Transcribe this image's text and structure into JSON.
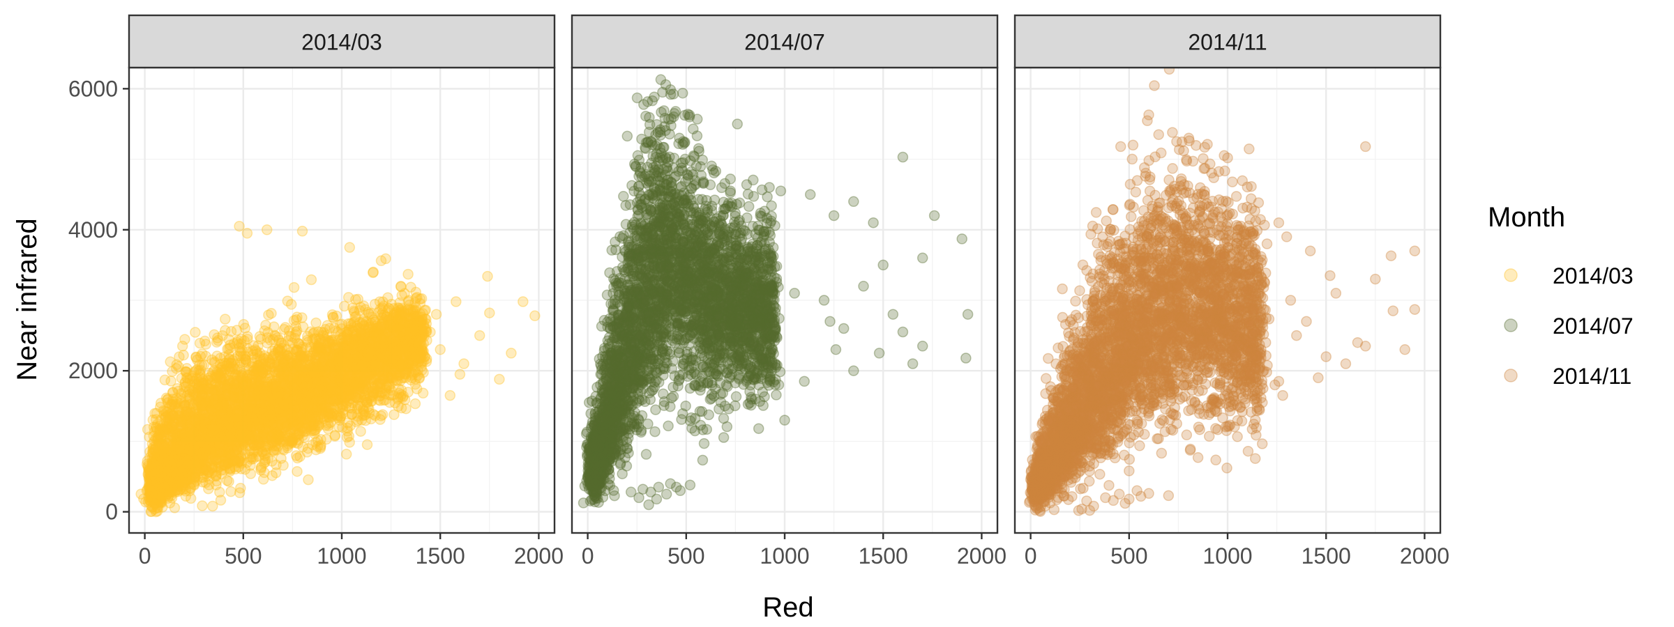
{
  "chart_data": {
    "type": "scatter",
    "xlabel": "Red",
    "ylabel": "Near infrared",
    "xlim": [
      -80,
      2080
    ],
    "ylim": [
      -300,
      6300
    ],
    "x_ticks": [
      0,
      500,
      1000,
      1500,
      2000
    ],
    "y_ticks": [
      0,
      2000,
      4000,
      6000
    ],
    "x_tick_labels": [
      "0",
      "500",
      "1000",
      "1500",
      "2000"
    ],
    "y_tick_labels": [
      "0",
      "2000",
      "4000",
      "6000"
    ],
    "grid": true,
    "legend": {
      "title": "Month",
      "placement": "right",
      "entries": [
        {
          "label": "2014/03",
          "color": "#FFC125"
        },
        {
          "label": "2014/07",
          "color": "#556B2F"
        },
        {
          "label": "2014/11",
          "color": "#CD853F"
        }
      ]
    },
    "point_opacity": 0.3,
    "panels": [
      {
        "strip_label": "2014/03",
        "color": "#FFC125",
        "cloud": {
          "base_nir_at_red": [
            [
              30,
              350
            ],
            [
              300,
              1050
            ],
            [
              700,
              1600
            ],
            [
              1100,
              2100
            ],
            [
              1400,
              2500
            ]
          ],
          "spread_up": [
            [
              30,
              600
            ],
            [
              150,
              1100
            ],
            [
              400,
              1000
            ],
            [
              700,
              800
            ],
            [
              1100,
              600
            ],
            [
              1400,
              500
            ]
          ],
          "spread_down": [
            [
              30,
              250
            ],
            [
              300,
              500
            ],
            [
              700,
              700
            ],
            [
              1100,
              700
            ],
            [
              1400,
              600
            ]
          ],
          "red_range": [
            30,
            1420
          ],
          "count": 5200
        },
        "highlights": [
          [
            480,
            4050
          ],
          [
            520,
            3950
          ],
          [
            620,
            4000
          ],
          [
            800,
            3980
          ],
          [
            1040,
            3750
          ],
          [
            1200,
            3560
          ],
          [
            1740,
            3340
          ],
          [
            1920,
            2980
          ],
          [
            1980,
            2780
          ],
          [
            1750,
            2820
          ],
          [
            1580,
            2980
          ],
          [
            1860,
            2250
          ],
          [
            1800,
            1880
          ],
          [
            1550,
            1650
          ],
          [
            1600,
            1950
          ],
          [
            1250,
            1650
          ],
          [
            1420,
            2200
          ],
          [
            1480,
            2800
          ],
          [
            1500,
            2300
          ],
          [
            1300,
            3200
          ],
          [
            1160,
            3400
          ],
          [
            1700,
            2500
          ],
          [
            1620,
            2100
          ]
        ]
      },
      {
        "strip_label": "2014/07",
        "color": "#556B2F",
        "cloud": {
          "base_nir_at_red": [
            [
              20,
              500
            ],
            [
              150,
              1800
            ],
            [
              300,
              3100
            ],
            [
              420,
              3600
            ],
            [
              600,
              3100
            ],
            [
              900,
              2800
            ]
          ],
          "spread_up": [
            [
              20,
              500
            ],
            [
              150,
              1400
            ],
            [
              300,
              2200
            ],
            [
              420,
              1700
            ],
            [
              600,
              1300
            ],
            [
              900,
              1200
            ]
          ],
          "spread_down": [
            [
              20,
              300
            ],
            [
              150,
              1000
            ],
            [
              300,
              1400
            ],
            [
              420,
              1500
            ],
            [
              600,
              1300
            ],
            [
              900,
              1000
            ]
          ],
          "red_range": [
            20,
            950
          ],
          "count": 4200
        },
        "highlights": [
          [
            380,
            5950
          ],
          [
            440,
            5650
          ],
          [
            760,
            5500
          ],
          [
            980,
            4550
          ],
          [
            1130,
            4500
          ],
          [
            1350,
            4400
          ],
          [
            1600,
            5030
          ],
          [
            1760,
            4200
          ],
          [
            1900,
            3870
          ],
          [
            1500,
            3500
          ],
          [
            1700,
            3600
          ],
          [
            1930,
            2800
          ],
          [
            1920,
            2180
          ],
          [
            1700,
            2350
          ],
          [
            1600,
            2550
          ],
          [
            1480,
            2250
          ],
          [
            1300,
            2600
          ],
          [
            1200,
            3000
          ],
          [
            1350,
            2000
          ],
          [
            1100,
            1850
          ],
          [
            1260,
            2300
          ],
          [
            1400,
            3200
          ],
          [
            1050,
            3100
          ],
          [
            1000,
            1300
          ],
          [
            1230,
            2700
          ],
          [
            1550,
            2800
          ],
          [
            1450,
            4100
          ],
          [
            1250,
            4200
          ],
          [
            1650,
            2100
          ],
          [
            320,
            280
          ],
          [
            360,
            350
          ],
          [
            420,
            400
          ],
          [
            450,
            350
          ],
          [
            520,
            380
          ],
          [
            470,
            300
          ],
          [
            260,
            200
          ],
          [
            310,
            100
          ],
          [
            400,
            250
          ],
          [
            350,
            180
          ],
          [
            220,
            280
          ],
          [
            280,
            320
          ]
        ]
      },
      {
        "strip_label": "2014/11",
        "color": "#CD853F",
        "cloud": {
          "base_nir_at_red": [
            [
              20,
              300
            ],
            [
              150,
              900
            ],
            [
              350,
              1800
            ],
            [
              600,
              2700
            ],
            [
              800,
              3000
            ],
            [
              1100,
              2600
            ]
          ],
          "spread_up": [
            [
              20,
              300
            ],
            [
              150,
              1100
            ],
            [
              350,
              1600
            ],
            [
              600,
              1700
            ],
            [
              800,
              1600
            ],
            [
              1100,
              1400
            ]
          ],
          "spread_down": [
            [
              20,
              200
            ],
            [
              150,
              500
            ],
            [
              350,
              900
            ],
            [
              600,
              1300
            ],
            [
              800,
              1300
            ],
            [
              1100,
              1200
            ]
          ],
          "red_range": [
            20,
            1180
          ],
          "count": 4800
        },
        "highlights": [
          [
            520,
            5200
          ],
          [
            650,
            5350
          ],
          [
            720,
            5380
          ],
          [
            1000,
            5020
          ],
          [
            1700,
            5180
          ],
          [
            1260,
            4100
          ],
          [
            1300,
            3900
          ],
          [
            1200,
            3800
          ],
          [
            1420,
            3700
          ],
          [
            1520,
            3350
          ],
          [
            1550,
            3100
          ],
          [
            1660,
            2400
          ],
          [
            1700,
            2350
          ],
          [
            1750,
            3300
          ],
          [
            1830,
            3630
          ],
          [
            1950,
            3700
          ],
          [
            1900,
            2300
          ],
          [
            1840,
            2850
          ],
          [
            1950,
            2870
          ],
          [
            1600,
            2100
          ],
          [
            1500,
            2200
          ],
          [
            1460,
            1900
          ],
          [
            1350,
            2500
          ],
          [
            1400,
            2700
          ],
          [
            1320,
            3000
          ],
          [
            1260,
            1850
          ],
          [
            1280,
            1650
          ],
          [
            1240,
            1800
          ],
          [
            1180,
            1750
          ],
          [
            380,
            200
          ],
          [
            450,
            250
          ],
          [
            500,
            180
          ],
          [
            560,
            220
          ],
          [
            600,
            260
          ],
          [
            700,
            230
          ],
          [
            300,
            20
          ],
          [
            320,
            80
          ],
          [
            420,
            160
          ],
          [
            540,
            300
          ],
          [
            480,
            120
          ],
          [
            260,
            40
          ]
        ]
      }
    ]
  }
}
